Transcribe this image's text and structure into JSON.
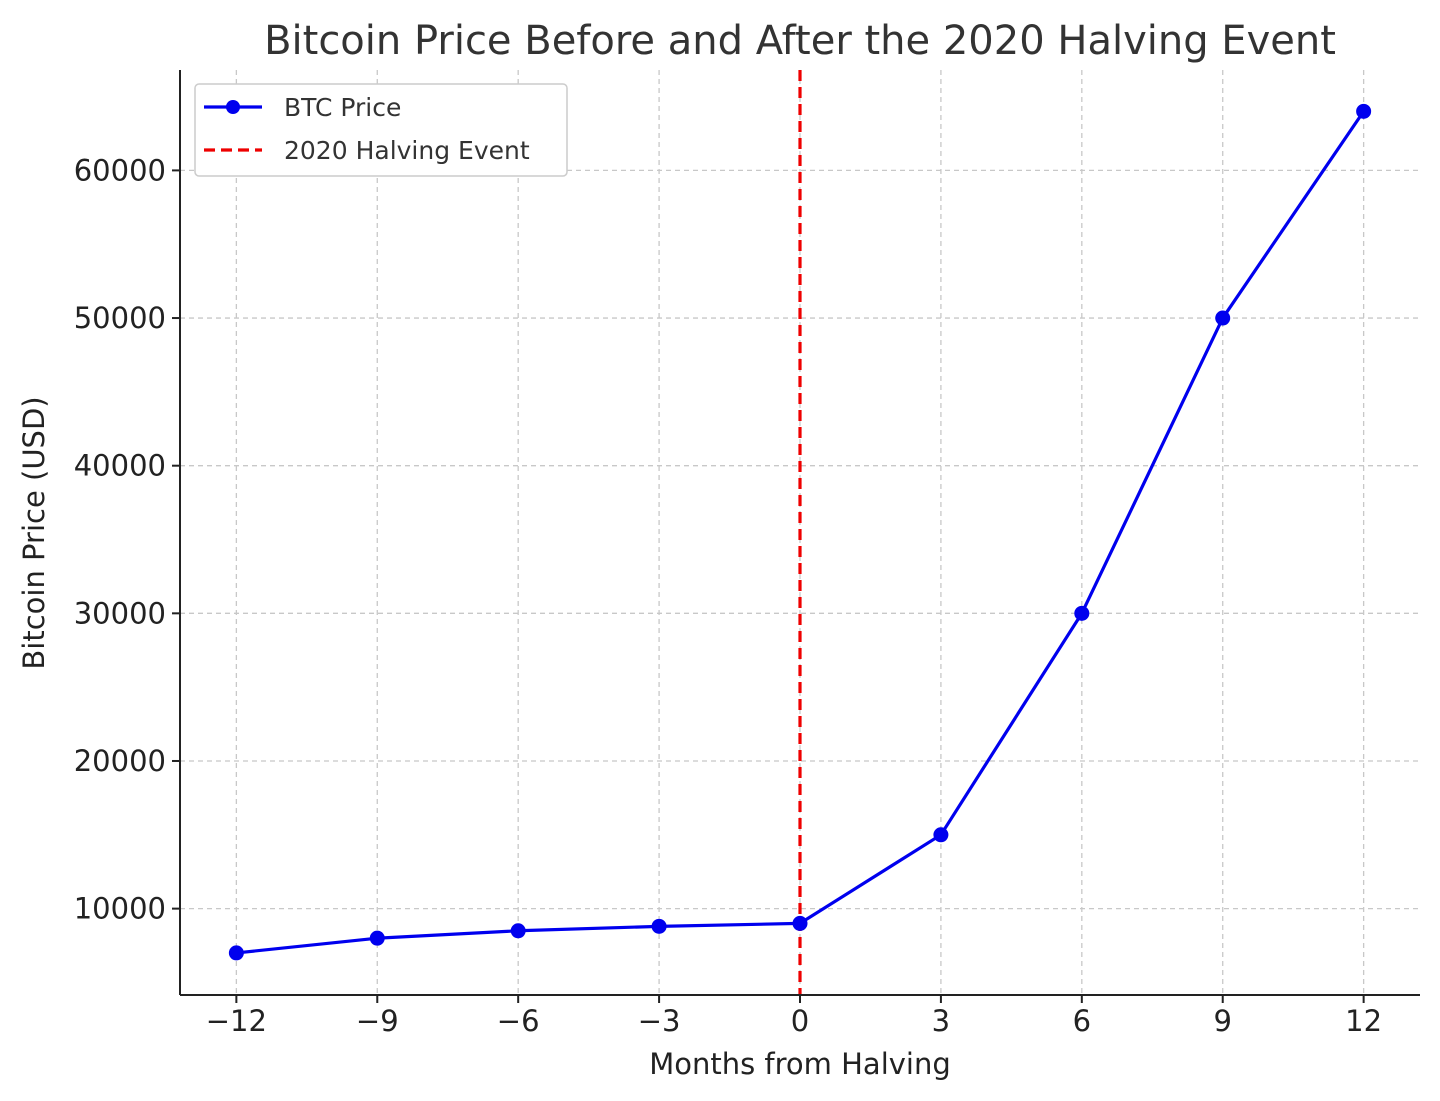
{
  "chart_data": {
    "type": "line",
    "title": "Bitcoin Price Before and After the 2020 Halving Event",
    "xlabel": "Months from Halving",
    "ylabel": "Bitcoin Price (USD)",
    "x": [
      -12,
      -9,
      -6,
      -3,
      0,
      3,
      6,
      9,
      12
    ],
    "xlim": [
      -13.2,
      13.2
    ],
    "ylim": [
      4150,
      66800
    ],
    "xticks": [
      -12,
      -9,
      -6,
      -3,
      0,
      3,
      6,
      9,
      12
    ],
    "xtick_labels": [
      "−12",
      "−9",
      "−6",
      "−3",
      "0",
      "3",
      "6",
      "9",
      "12"
    ],
    "yticks": [
      10000,
      20000,
      30000,
      40000,
      50000,
      60000
    ],
    "ytick_labels": [
      "10000",
      "20000",
      "30000",
      "40000",
      "50000",
      "60000"
    ],
    "grid": true,
    "legend_position": "top-left",
    "series": [
      {
        "name": "BTC Price",
        "values": [
          7000,
          8000,
          8500,
          8800,
          9000,
          15000,
          30000,
          50000,
          64000
        ],
        "color": "#0000ee",
        "marker": "circle",
        "line_style": "solid"
      }
    ],
    "annotations": [
      {
        "type": "vertical-line",
        "x": 0,
        "label": "2020 Halving Event",
        "color": "#ee0000",
        "line_style": "dashed"
      }
    ]
  }
}
